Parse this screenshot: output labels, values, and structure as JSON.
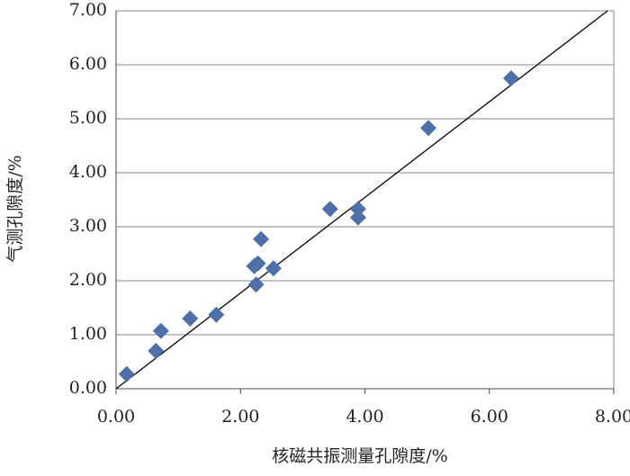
{
  "chart_data": {
    "type": "scatter",
    "xlabel": "核磁共振测量孔隙度/%",
    "ylabel": "气测孔隙度/%",
    "x": [
      0.17,
      0.64,
      0.72,
      1.19,
      1.61,
      2.22,
      2.28,
      2.25,
      2.53,
      2.33,
      3.44,
      3.89,
      3.89,
      5.02,
      6.35
    ],
    "values": [
      0.27,
      0.7,
      1.07,
      1.3,
      1.37,
      2.27,
      2.32,
      1.93,
      2.23,
      2.77,
      3.33,
      3.33,
      3.17,
      4.83,
      5.75
    ],
    "color": "#4f6fa8",
    "xlim": [
      0,
      8
    ],
    "ylim": [
      0,
      7
    ],
    "xticks": [
      {
        "value": 0,
        "label": "0.00"
      },
      {
        "value": 2,
        "label": "2.00"
      },
      {
        "value": 4,
        "label": "4.00"
      },
      {
        "value": 6,
        "label": "6.00"
      },
      {
        "value": 8,
        "label": "8.00"
      }
    ],
    "yticks": [
      {
        "value": 0,
        "label": "0.00"
      },
      {
        "value": 1,
        "label": "1.00"
      },
      {
        "value": 2,
        "label": "2.00"
      },
      {
        "value": 3,
        "label": "3.00"
      },
      {
        "value": 4,
        "label": "4.00"
      },
      {
        "value": 5,
        "label": "5.00"
      },
      {
        "value": 6,
        "label": "6.00"
      },
      {
        "value": 7,
        "label": "7.00"
      }
    ],
    "grid": true,
    "reference_line": {
      "x": [
        0,
        7.9
      ],
      "y": [
        0,
        7
      ]
    }
  }
}
